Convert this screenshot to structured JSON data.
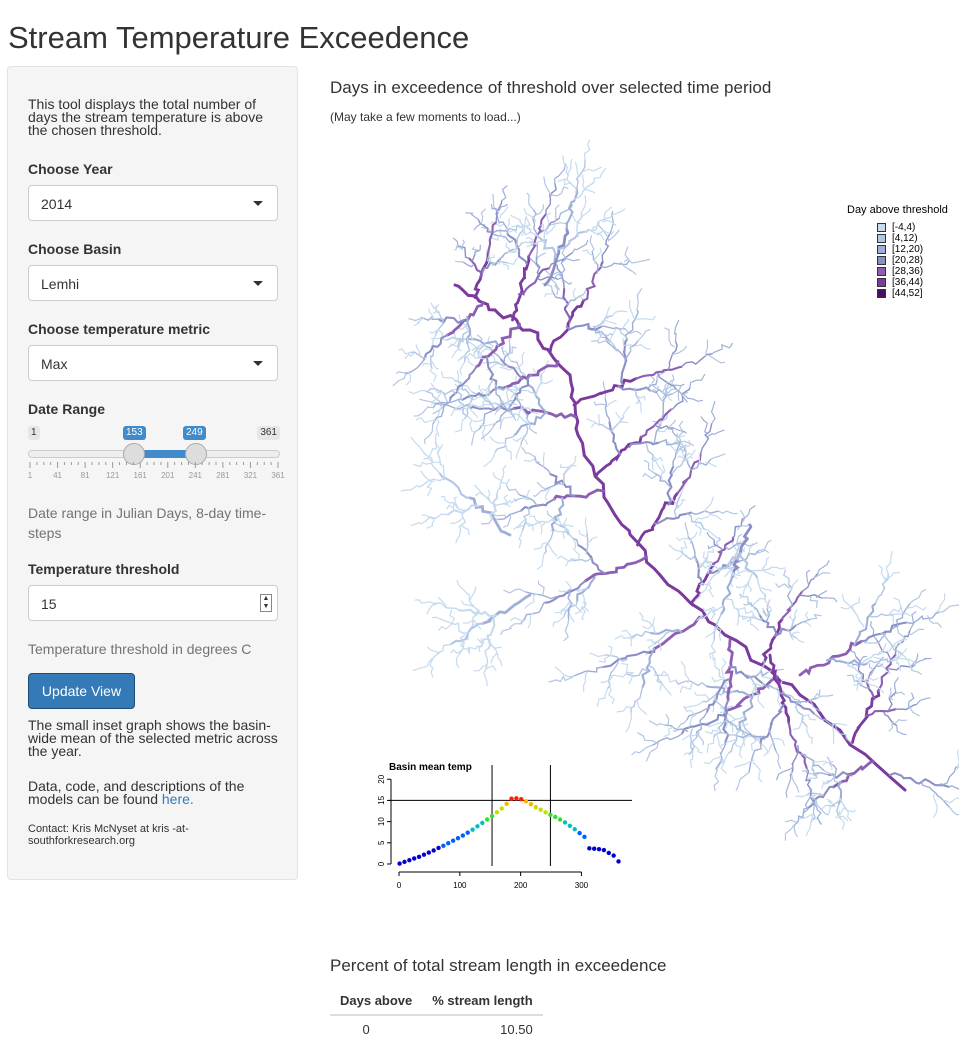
{
  "page": {
    "title": "Stream Temperature Exceedence"
  },
  "sidebar": {
    "intro": "This tool displays the total number of days the stream temperature is above the chosen threshold.",
    "year": {
      "label": "Choose Year",
      "value": "2014"
    },
    "basin": {
      "label": "Choose Basin",
      "value": "Lemhi"
    },
    "metric": {
      "label": "Choose temperature metric",
      "value": "Max"
    },
    "date_range": {
      "label": "Date Range",
      "min": 1,
      "max": 361,
      "from": 153,
      "to": 249,
      "min_label": "1",
      "max_label": "361",
      "from_label": "153",
      "to_label": "249",
      "ticks": [
        "1",
        "41",
        "81",
        "121",
        "161",
        "201",
        "241",
        "281",
        "321",
        "361"
      ],
      "help": "Date range in Julian Days, 8-day time-steps"
    },
    "threshold": {
      "label": "Temperature threshold",
      "value": "15",
      "help": "Temperature threshold in degrees C"
    },
    "update_button": "Update View",
    "inset_note": "The small inset graph shows the basin-wide mean of the selected metric across the year.",
    "data_note": "Data, code, and descriptions of the models can be found",
    "data_link": "here.",
    "contact": "Contact: Kris McNyset at kris -at- southforkresearch.org"
  },
  "map": {
    "heading": "Days in exceedence of threshold over selected time period",
    "note": "(May take a few moments to load...)",
    "legend_title": "Day above threshold",
    "legend": [
      {
        "label": "[-4,4)",
        "color": "#c6dbef"
      },
      {
        "label": "[4,12)",
        "color": "#b3c6e4"
      },
      {
        "label": "[12,20)",
        "color": "#9eb0d8"
      },
      {
        "label": "[20,28)",
        "color": "#8c8fc6"
      },
      {
        "label": "[28,36)",
        "color": "#8c5fb3"
      },
      {
        "label": "[36,44)",
        "color": "#7a3a9e"
      },
      {
        "label": "[44,52]",
        "color": "#4a0e5e"
      }
    ]
  },
  "inset_chart": {
    "title": "Basin mean temp",
    "xticks": [
      "0",
      "100",
      "200",
      "300"
    ],
    "yticks": [
      "0",
      "5",
      "10",
      "15",
      "20"
    ]
  },
  "chart_data": {
    "type": "scatter",
    "title": "Basin mean temp",
    "xlabel": "",
    "ylabel": "",
    "xlim": [
      0,
      370
    ],
    "ylim": [
      0,
      21
    ],
    "threshold_line": 15,
    "range_lines": [
      153,
      249
    ],
    "x": [
      1,
      9,
      17,
      25,
      33,
      41,
      49,
      57,
      65,
      73,
      81,
      89,
      97,
      105,
      113,
      121,
      129,
      137,
      145,
      153,
      161,
      169,
      177,
      185,
      193,
      201,
      209,
      217,
      225,
      233,
      241,
      249,
      257,
      265,
      273,
      281,
      289,
      297,
      305,
      313,
      321,
      329,
      337,
      345,
      353,
      361
    ],
    "y": [
      0.1,
      0.5,
      0.9,
      1.3,
      1.7,
      2.2,
      2.7,
      3.2,
      3.8,
      4.3,
      4.9,
      5.5,
      6.1,
      6.7,
      7.4,
      8.1,
      8.9,
      9.7,
      10.5,
      11.3,
      12.2,
      13.1,
      14.2,
      15.4,
      15.5,
      15.3,
      14.8,
      14.1,
      13.4,
      12.8,
      12.2,
      11.6,
      11.1,
      10.5,
      9.8,
      9.0,
      8.2,
      7.3,
      6.4,
      3.7,
      3.6,
      3.5,
      3.3,
      2.6,
      2.0,
      0.6
    ]
  },
  "table": {
    "heading": "Percent of total stream length in exceedence",
    "columns": [
      "Days above",
      "% stream length"
    ],
    "rows": [
      [
        "0",
        "10.50"
      ]
    ]
  }
}
